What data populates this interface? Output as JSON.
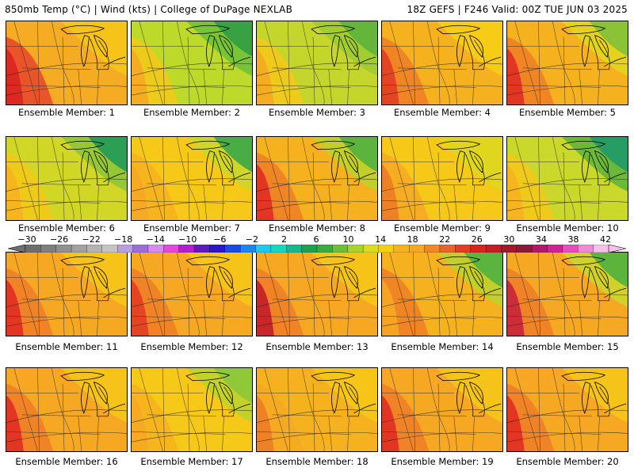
{
  "header": {
    "title_left": "850mb Temp (°C) | Wind (kts) | College of DuPage NEXLAB",
    "title_right": "18Z GEFS | F246 Valid: 00Z TUE JUN 03 2025"
  },
  "panels": [
    {
      "label": "Ensemble Member: 1",
      "fill": "#f6ac22",
      "warm": "#e8442a",
      "west_hot": "#d9241f",
      "cool": "#f6c817",
      "green": null
    },
    {
      "label": "Ensemble Member: 2",
      "fill": "#bdd92a",
      "warm": "#f6c817",
      "west_hot": "#f6a823",
      "cool": "#6bbf3a",
      "green": "#2f9e45"
    },
    {
      "label": "Ensemble Member: 3",
      "fill": "#c4d62c",
      "warm": "#f6c817",
      "west_hot": "#f6a823",
      "cool": "#9ccb33",
      "green": "#5cb43c"
    },
    {
      "label": "Ensemble Member: 4",
      "fill": "#f6b21e",
      "warm": "#ee7c26",
      "west_hot": "#e33d24",
      "cool": "#f6d015",
      "green": null
    },
    {
      "label": "Ensemble Member: 5",
      "fill": "#f6b21e",
      "warm": "#ee7c26",
      "west_hot": "#e02c22",
      "cool": "#e1d81d",
      "green": "#7fc23a"
    },
    {
      "label": "Ensemble Member: 6",
      "fill": "#d2d625",
      "warm": "#f6c817",
      "west_hot": "#f6b21e",
      "cool": "#8cc63a",
      "green": "#1f9a56"
    },
    {
      "label": "Ensemble Member: 7",
      "fill": "#f6c817",
      "warm": "#f6b21e",
      "west_hot": "#f6a823",
      "cool": "#c9d82a",
      "green": "#3aa84a"
    },
    {
      "label": "Ensemble Member: 8",
      "fill": "#f6b21e",
      "warm": "#ee7c26",
      "west_hot": "#e02c22",
      "cool": "#b8d42c",
      "green": "#4fb03f"
    },
    {
      "label": "Ensemble Member: 9",
      "fill": "#f6c817",
      "warm": "#f6a823",
      "west_hot": "#ee7c26",
      "cool": "#dcd81f",
      "green": null
    },
    {
      "label": "Ensemble Member: 10",
      "fill": "#c9d82a",
      "warm": "#f6c817",
      "west_hot": "#f6b21e",
      "cool": "#5cb43c",
      "green": "#1e9a6a"
    },
    {
      "label": "Ensemble Member: 11",
      "fill": "#f6a823",
      "warm": "#ee7c26",
      "west_hot": "#e02c22",
      "cool": "#f6c817",
      "green": null
    },
    {
      "label": "Ensemble Member: 12",
      "fill": "#f6a823",
      "warm": "#ee7c26",
      "west_hot": "#e33d24",
      "cool": "#f6c817",
      "green": null
    },
    {
      "label": "Ensemble Member: 13",
      "fill": "#f6a823",
      "warm": "#ee7c26",
      "west_hot": "#c21d2a",
      "cool": "#f6c817",
      "green": null
    },
    {
      "label": "Ensemble Member: 14",
      "fill": "#f6b21e",
      "warm": "#ee7c26",
      "west_hot": "#f6a823",
      "cool": "#b8d42c",
      "green": "#4fb03f"
    },
    {
      "label": "Ensemble Member: 15",
      "fill": "#f6a823",
      "warm": "#ee7c26",
      "west_hot": "#c9243a",
      "cool": "#c9d82a",
      "green": "#4fb03f"
    },
    {
      "label": "Ensemble Member: 16",
      "fill": "#f6a823",
      "warm": "#ee7c26",
      "west_hot": "#e02c22",
      "cool": "#f6c817",
      "green": null
    },
    {
      "label": "Ensemble Member: 17",
      "fill": "#f6c817",
      "warm": "#f6b21e",
      "west_hot": "#f6a823",
      "cool": "#b8d42c",
      "green": "#8cc63a"
    },
    {
      "label": "Ensemble Member: 18",
      "fill": "#f6b21e",
      "warm": "#f6a823",
      "west_hot": "#ee7c26",
      "cool": "#f6c817",
      "green": null
    },
    {
      "label": "Ensemble Member: 19",
      "fill": "#f6a823",
      "warm": "#ee7c26",
      "west_hot": "#e02c22",
      "cool": "#f6c817",
      "green": null
    },
    {
      "label": "Ensemble Member: 20",
      "fill": "#f6a823",
      "warm": "#ee7c26",
      "west_hot": "#e02c22",
      "cool": "#f6c817",
      "green": null
    }
  ],
  "colorbar": {
    "ticks": [
      "−30",
      "−26",
      "−22",
      "−18",
      "−14",
      "−10",
      "−6",
      "−2",
      "2",
      "6",
      "10",
      "14",
      "18",
      "22",
      "26",
      "30",
      "34",
      "38",
      "42"
    ],
    "colors": [
      "#6e6e6e",
      "#7f7f7f",
      "#909090",
      "#a1a1a1",
      "#b3b3b3",
      "#c4c4c4",
      "#b8a0e0",
      "#9a6ee0",
      "#d58cf0",
      "#e24ad9",
      "#b020d0",
      "#5d1cc0",
      "#2a18c8",
      "#1c4ae8",
      "#1f86f0",
      "#20c8f0",
      "#18d6c0",
      "#19b78c",
      "#1fa050",
      "#3daa3a",
      "#6fbe34",
      "#a8d22c",
      "#d8dc22",
      "#f6d015",
      "#f6b21e",
      "#f6a823",
      "#ee8726",
      "#e8642a",
      "#e33d24",
      "#d9241f",
      "#c21d2a",
      "#9e1b2a",
      "#8a1a3a",
      "#b01a6a",
      "#d2209a",
      "#e64ec0",
      "#f08ad8",
      "#f7c0ea"
    ]
  }
}
